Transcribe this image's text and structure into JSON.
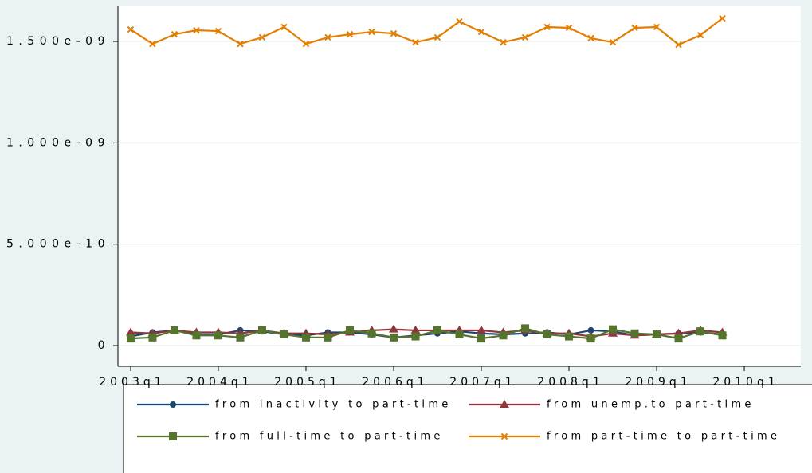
{
  "chart_data": {
    "type": "line",
    "x": [
      172,
      173,
      174,
      175,
      176,
      177,
      178,
      179,
      180,
      181,
      182,
      183,
      184,
      185,
      186,
      187,
      188,
      189,
      190,
      191,
      192,
      193,
      194,
      195,
      196,
      197,
      198,
      199
    ],
    "xlim": [
      171.42,
      202.58
    ],
    "xticks": [
      {
        "value": 172,
        "label": "2003q1"
      },
      {
        "value": 176,
        "label": "2004q1"
      },
      {
        "value": 180,
        "label": "2005q1"
      },
      {
        "value": 184,
        "label": "2006q1"
      },
      {
        "value": 188,
        "label": "2007q1"
      },
      {
        "value": 192,
        "label": "2008q1"
      },
      {
        "value": 196,
        "label": "2009q1"
      },
      {
        "value": 200,
        "label": "2010q1"
      }
    ],
    "ylim": [
      -1.02e-10,
      1.673e-09
    ],
    "yticks": [
      0,
      {
        "value": 5e-10,
        "label": "5.000e-10"
      },
      {
        "value": 1e-09,
        "label": "1.000e-09"
      },
      {
        "value": 1.5e-09,
        "label": "1.500e-09"
      }
    ],
    "grid": true,
    "series": [
      {
        "name": "from inactivity to part-time",
        "color": "#1a476f",
        "marker": "circle",
        "values": [
          4.5e-11,
          6.5e-11,
          7.5e-11,
          5.5e-11,
          5.5e-11,
          7.5e-11,
          7e-11,
          5.5e-11,
          5e-11,
          6.5e-11,
          6.5e-11,
          5.5e-11,
          4e-11,
          5e-11,
          6e-11,
          7e-11,
          6e-11,
          5.5e-11,
          6e-11,
          6.5e-11,
          5.5e-11,
          7.5e-11,
          7e-11,
          5e-11,
          5.5e-11,
          6e-11,
          6.5e-11,
          5.5e-11
        ]
      },
      {
        "name": "from unemp.to part-time",
        "color": "#90353b",
        "marker": "triangle",
        "values": [
          6.5e-11,
          6e-11,
          7.5e-11,
          6.5e-11,
          6.5e-11,
          6e-11,
          7.5e-11,
          6e-11,
          6e-11,
          5.5e-11,
          6.5e-11,
          7.5e-11,
          8e-11,
          7.5e-11,
          7.5e-11,
          7.5e-11,
          7.5e-11,
          6.5e-11,
          7.5e-11,
          6e-11,
          6e-11,
          4.5e-11,
          6e-11,
          5e-11,
          5.5e-11,
          6e-11,
          7.5e-11,
          6.5e-11
        ]
      },
      {
        "name": "from full-time to part-time",
        "color": "#55752f",
        "marker": "square",
        "values": [
          3.5e-11,
          4e-11,
          7.5e-11,
          5e-11,
          5e-11,
          4e-11,
          7.5e-11,
          5.5e-11,
          4e-11,
          4e-11,
          7.5e-11,
          6e-11,
          4e-11,
          4.5e-11,
          7.5e-11,
          5.5e-11,
          3.5e-11,
          5e-11,
          8.5e-11,
          5.5e-11,
          4.5e-11,
          3.5e-11,
          8e-11,
          6e-11,
          5.5e-11,
          3.5e-11,
          7e-11,
          5e-11
        ]
      },
      {
        "name": "from part-time to part-time",
        "color": "#e37e00",
        "marker": "x",
        "values": [
          1.559e-09,
          1.488e-09,
          1.535e-09,
          1.555e-09,
          1.551e-09,
          1.488e-09,
          1.52e-09,
          1.571e-09,
          1.488e-09,
          1.52e-09,
          1.535e-09,
          1.547e-09,
          1.539e-09,
          1.496e-09,
          1.52e-09,
          1.598e-09,
          1.547e-09,
          1.496e-09,
          1.52e-09,
          1.571e-09,
          1.567e-09,
          1.516e-09,
          1.496e-09,
          1.567e-09,
          1.571e-09,
          1.484e-09,
          1.531e-09,
          1.614e-09
        ]
      }
    ]
  }
}
